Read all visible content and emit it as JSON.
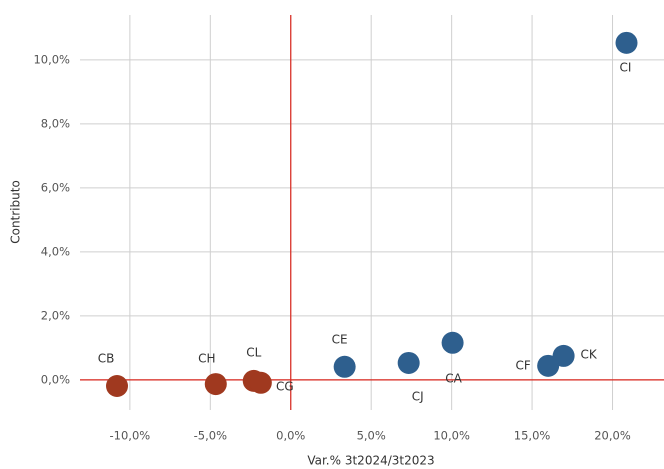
{
  "chart_data": {
    "type": "scatter",
    "x_label": "Var.% 3t2024/3t2023",
    "y_label": "Contributo",
    "xlim": [
      -13.1,
      23.2
    ],
    "ylim": [
      -0.94,
      11.4
    ],
    "xticks": [
      {
        "value": -10,
        "label": "-10,0%"
      },
      {
        "value": -5,
        "label": "-5,0%"
      },
      {
        "value": 0,
        "label": "0,0%"
      },
      {
        "value": 5,
        "label": "5,0%"
      },
      {
        "value": 10,
        "label": "10,0%"
      },
      {
        "value": 15,
        "label": "15,0%"
      },
      {
        "value": 20,
        "label": "20,0%"
      }
    ],
    "yticks": [
      {
        "value": 0,
        "label": "0,0%"
      },
      {
        "value": 2,
        "label": "2,0%"
      },
      {
        "value": 4,
        "label": "4,0%"
      },
      {
        "value": 6,
        "label": "6,0%"
      },
      {
        "value": 8,
        "label": "8,0%"
      },
      {
        "value": 10,
        "label": "10,0%"
      }
    ],
    "grid": true,
    "zero_line_color": "#d9261c",
    "points": [
      {
        "label": "CI",
        "x": 20.87,
        "y": 10.53,
        "color": "#2e5f8e"
      },
      {
        "label": "CK",
        "x": 16.96,
        "y": 0.75,
        "color": "#2e5f8e"
      },
      {
        "label": "CF",
        "x": 16.0,
        "y": 0.44,
        "color": "#2e5f8e"
      },
      {
        "label": "CA",
        "x": 10.06,
        "y": 1.16,
        "color": "#2e5f8e"
      },
      {
        "label": "CJ",
        "x": 7.33,
        "y": 0.53,
        "color": "#2e5f8e"
      },
      {
        "label": "CE",
        "x": 3.35,
        "y": 0.41,
        "color": "#2e5f8e"
      },
      {
        "label": "CL",
        "x": -2.3,
        "y": -0.03,
        "color": "#a0391f"
      },
      {
        "label": "CG",
        "x": -1.86,
        "y": -0.09,
        "color": "#a0391f"
      },
      {
        "label": "CH",
        "x": -4.66,
        "y": -0.13,
        "color": "#a0391f"
      },
      {
        "label": "CB",
        "x": -10.8,
        "y": -0.19,
        "color": "#a0391f"
      }
    ]
  }
}
